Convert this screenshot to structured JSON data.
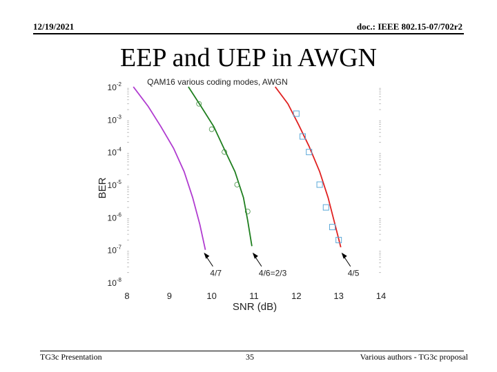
{
  "header": {
    "date": "12/19/2021",
    "doc_id": "doc.: IEEE 802.15-07/702r2"
  },
  "slide": {
    "title": "EEP and UEP in AWGN"
  },
  "footer": {
    "left": "TG3c Presentation",
    "page": "35",
    "right": "Various authors - TG3c proposal"
  },
  "colors": {
    "series_47": "#b03bd0",
    "series_46": "#1e7e1e",
    "series_45": "#e02020",
    "markers": "#5aa8d8"
  },
  "chart_data": {
    "type": "line",
    "title": "QAM16 various coding modes, AWGN",
    "xlabel": "SNR (dB)",
    "ylabel": "BER",
    "xlim": [
      8,
      14
    ],
    "ylim": [
      1e-08,
      0.01
    ],
    "yscale": "log",
    "xticks": [
      "8",
      "9",
      "10",
      "11",
      "12",
      "13",
      "14"
    ],
    "yticks": [
      {
        "base": "10",
        "exp": "-2"
      },
      {
        "base": "10",
        "exp": "-3"
      },
      {
        "base": "10",
        "exp": "-4"
      },
      {
        "base": "10",
        "exp": "-5"
      },
      {
        "base": "10",
        "exp": "-6"
      },
      {
        "base": "10",
        "exp": "-7"
      },
      {
        "base": "10",
        "exp": "-8"
      }
    ],
    "series": [
      {
        "name": "4/7",
        "color": "#b03bd0",
        "x": [
          8.15,
          8.5,
          8.8,
          9.1,
          9.35,
          9.55,
          9.72,
          9.85
        ],
        "y": [
          0.01,
          0.0025,
          0.0006,
          0.00013,
          2.5e-05,
          4e-06,
          6e-07,
          1e-07
        ]
      },
      {
        "name": "4/6=2/3",
        "color": "#1e7e1e",
        "x": [
          9.45,
          9.75,
          10.05,
          10.3,
          10.55,
          10.75,
          10.85,
          10.95
        ],
        "y": [
          0.01,
          0.0025,
          0.0006,
          0.00012,
          2.5e-05,
          4e-06,
          8e-07,
          1.3e-07
        ]
      },
      {
        "name": "4/5",
        "color": "#e02020",
        "x": [
          11.5,
          11.8,
          12.05,
          12.3,
          12.55,
          12.75,
          12.9,
          13.05
        ],
        "y": [
          0.01,
          0.003,
          0.0007,
          0.00015,
          2.5e-05,
          4e-06,
          7e-07,
          1.2e-07
        ]
      }
    ],
    "markers": [
      {
        "shape": "circle",
        "x": [
          9.7,
          10.0,
          10.3,
          10.6,
          10.85
        ],
        "y": [
          0.003,
          0.0005,
          0.0001,
          1e-05,
          1.5e-06
        ]
      },
      {
        "shape": "square",
        "x": [
          12.0,
          12.15,
          12.3,
          12.55,
          12.7,
          12.85,
          13.0
        ],
        "y": [
          0.0015,
          0.0003,
          0.0001,
          1e-05,
          2e-06,
          5e-07,
          2e-07
        ]
      }
    ],
    "annotations": [
      {
        "text": "4/7",
        "x": 9.8,
        "y": 1e-07
      },
      {
        "text": "4/6=2/3",
        "x": 10.95,
        "y": 1e-07
      },
      {
        "text": "4/5",
        "x": 13.05,
        "y": 1e-07
      }
    ],
    "grid": false,
    "legend": "none"
  }
}
